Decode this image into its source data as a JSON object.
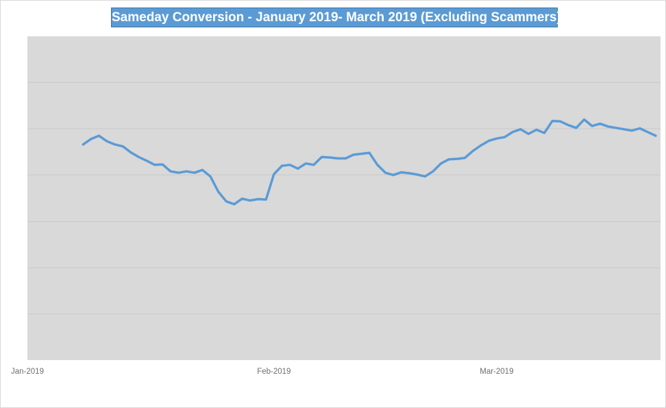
{
  "chart_data": {
    "type": "line",
    "title": "Sameday Conversion - January 2019- March 2019 (Excluding Scammers)",
    "xlabel": "",
    "ylabel": "",
    "y_axis": {
      "min": 0,
      "max": 7,
      "gridline_divisions": 7,
      "tick_labels_visible": false,
      "units": "relative (no axis labels shown)"
    },
    "x_axis": {
      "start_date": "2019-01-01",
      "max_days": 79.6,
      "frequency": "daily",
      "ticks": [
        {
          "label": "Jan-2019",
          "t": 0
        },
        {
          "label": "Feb-2019",
          "t": 31
        },
        {
          "label": "Mar-2019",
          "t": 59
        }
      ]
    },
    "legend": "none",
    "grid": "horizontal-only",
    "series": [
      {
        "name": "Sameday Conversion",
        "first_point_date": "2019-01-08",
        "last_point_date": "2019-03-21",
        "points": [
          [
            7,
            4.66
          ],
          [
            8,
            4.78
          ],
          [
            9,
            4.85
          ],
          [
            10,
            4.73
          ],
          [
            11,
            4.66
          ],
          [
            12,
            4.62
          ],
          [
            13,
            4.49
          ],
          [
            14,
            4.39
          ],
          [
            15,
            4.31
          ],
          [
            16,
            4.22
          ],
          [
            17,
            4.23
          ],
          [
            18,
            4.08
          ],
          [
            19,
            4.05
          ],
          [
            20,
            4.08
          ],
          [
            21,
            4.05
          ],
          [
            22,
            4.11
          ],
          [
            23,
            3.97
          ],
          [
            24,
            3.64
          ],
          [
            25,
            3.43
          ],
          [
            26,
            3.37
          ],
          [
            27,
            3.49
          ],
          [
            28,
            3.45
          ],
          [
            29,
            3.48
          ],
          [
            30,
            3.47
          ],
          [
            31,
            4.02
          ],
          [
            32,
            4.2
          ],
          [
            33,
            4.22
          ],
          [
            34,
            4.14
          ],
          [
            35,
            4.25
          ],
          [
            36,
            4.22
          ],
          [
            37,
            4.39
          ],
          [
            38,
            4.38
          ],
          [
            39,
            4.36
          ],
          [
            40,
            4.36
          ],
          [
            41,
            4.44
          ],
          [
            42,
            4.46
          ],
          [
            43,
            4.48
          ],
          [
            44,
            4.22
          ],
          [
            45,
            4.05
          ],
          [
            46,
            4.0
          ],
          [
            47,
            4.06
          ],
          [
            48,
            4.04
          ],
          [
            49,
            4.01
          ],
          [
            50,
            3.97
          ],
          [
            51,
            4.08
          ],
          [
            52,
            4.25
          ],
          [
            53,
            4.34
          ],
          [
            54,
            4.35
          ],
          [
            55,
            4.37
          ],
          [
            56,
            4.52
          ],
          [
            57,
            4.64
          ],
          [
            58,
            4.74
          ],
          [
            59,
            4.79
          ],
          [
            60,
            4.82
          ],
          [
            61,
            4.93
          ],
          [
            62,
            4.99
          ],
          [
            63,
            4.89
          ],
          [
            64,
            4.98
          ],
          [
            65,
            4.91
          ],
          [
            66,
            5.17
          ],
          [
            67,
            5.16
          ],
          [
            68,
            5.08
          ],
          [
            69,
            5.02
          ],
          [
            70,
            5.2
          ],
          [
            71,
            5.06
          ],
          [
            72,
            5.11
          ],
          [
            73,
            5.05
          ],
          [
            74,
            5.02
          ],
          [
            75,
            4.99
          ],
          [
            76,
            4.96
          ],
          [
            77,
            5.01
          ],
          [
            78,
            4.93
          ],
          [
            79,
            4.85
          ]
        ]
      }
    ],
    "colors": {
      "line": "#5B9BD5",
      "title_banner_bg": "#5B9BD5",
      "title_banner_border": "#41719C",
      "title_text": "#FFFFFF",
      "plot_bg": "#D9D9D9",
      "gridline": "#C9C9C9",
      "axis_label_text": "#6E6E6E",
      "chart_border": "#D8D8D8",
      "chart_bg": "#FFFFFF"
    }
  }
}
